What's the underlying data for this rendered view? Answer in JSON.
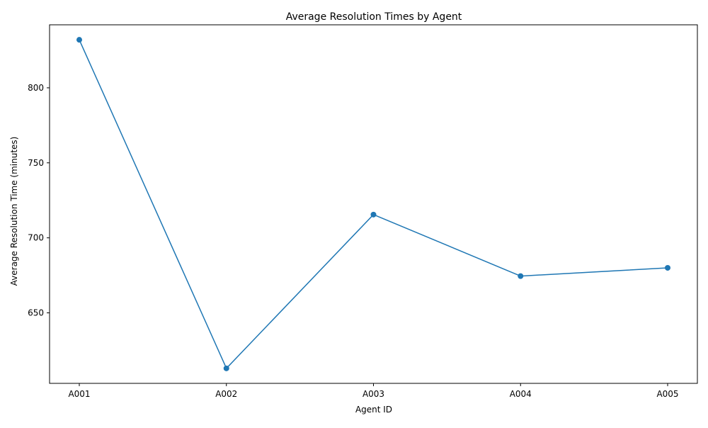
{
  "chart_data": {
    "type": "line",
    "title": "Average Resolution Times by Agent",
    "xlabel": "Agent ID",
    "ylabel": "Average Resolution Time (minutes)",
    "categories": [
      "A001",
      "A002",
      "A003",
      "A004",
      "A005"
    ],
    "series": [
      {
        "values": [
          832,
          613,
          715.5,
          674.5,
          680
        ],
        "color": "#1f77b4",
        "marker": "circle"
      }
    ],
    "ylim": [
      603,
      842
    ],
    "yticks": [
      650,
      700,
      750,
      800
    ],
    "grid": false,
    "legend": "none"
  }
}
